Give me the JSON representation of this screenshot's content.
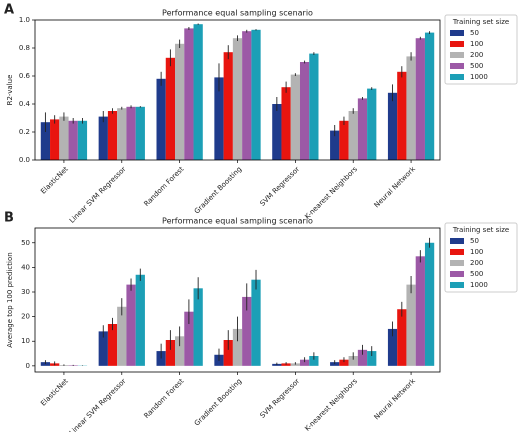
{
  "chart_data": [
    {
      "type": "bar",
      "panel": "A",
      "title": "Performance equal sampling scenario",
      "y_label": "R2-value",
      "categories": [
        "ElasticNet",
        "Linear SVM Regressor",
        "Random Forest",
        "Gradient Boosting",
        "SVM Regressor",
        "K-nearest Neighbors",
        "Neural Network"
      ],
      "legend_title": "Training set size",
      "legend": "outside right",
      "series": [
        {
          "name": "50",
          "color": "#1f3b8c",
          "values": [
            0.27,
            0.31,
            0.58,
            0.59,
            0.4,
            0.21,
            0.48
          ],
          "errors": [
            0.07,
            0.04,
            0.05,
            0.1,
            0.05,
            0.04,
            0.06
          ]
        },
        {
          "name": "100",
          "color": "#e8150f",
          "values": [
            0.29,
            0.35,
            0.73,
            0.77,
            0.52,
            0.28,
            0.63
          ],
          "errors": [
            0.03,
            0.02,
            0.06,
            0.05,
            0.04,
            0.03,
            0.04
          ]
        },
        {
          "name": "200",
          "color": "#b3b3b3",
          "values": [
            0.31,
            0.37,
            0.83,
            0.87,
            0.61,
            0.35,
            0.74
          ],
          "errors": [
            0.03,
            0.01,
            0.03,
            0.02,
            0.01,
            0.02,
            0.03
          ]
        },
        {
          "name": "500",
          "color": "#9c59a6",
          "values": [
            0.28,
            0.38,
            0.94,
            0.92,
            0.7,
            0.44,
            0.87
          ],
          "errors": [
            0.02,
            0.01,
            0.01,
            0.01,
            0.01,
            0.01,
            0.01
          ]
        },
        {
          "name": "1000",
          "color": "#1c9fb6",
          "values": [
            0.28,
            0.38,
            0.97,
            0.93,
            0.76,
            0.51,
            0.91
          ],
          "errors": [
            0.02,
            0.005,
            0.005,
            0.005,
            0.01,
            0.01,
            0.01
          ]
        }
      ],
      "ylim": [
        0,
        1.0
      ],
      "yticks": [
        {
          "value": 0,
          "label": "0.0"
        },
        0.2,
        0.4,
        0.6,
        0.8,
        {
          "value": 1,
          "label": "1.0"
        }
      ]
    },
    {
      "type": "bar",
      "panel": "B",
      "title": "Performance equal sampling scenario",
      "y_label": "Average top 100 prediction",
      "categories": [
        "ElasticNet",
        "Linear SVM Regressor",
        "Random Forest",
        "Gradient Boosting",
        "SVM Regressor",
        "K-nearest Neighbors",
        "Neural Network"
      ],
      "legend_title": "Training set size",
      "legend": "outside right",
      "series": [
        {
          "name": "50",
          "color": "#1f3b8c",
          "values": [
            1.5,
            14,
            6,
            4.5,
            0.8,
            1.5,
            15
          ],
          "errors": [
            0.8,
            2.5,
            3,
            2.5,
            0.5,
            0.8,
            3
          ]
        },
        {
          "name": "100",
          "color": "#e8150f",
          "values": [
            1,
            17,
            10.5,
            10.5,
            1,
            2.5,
            23
          ],
          "errors": [
            0.8,
            2.5,
            4,
            4,
            0.5,
            1,
            3
          ]
        },
        {
          "name": "200",
          "color": "#b3b3b3",
          "values": [
            0.3,
            24,
            12,
            15,
            1,
            4,
            33
          ],
          "errors": [
            0.3,
            3.5,
            4,
            5,
            0.5,
            1.5,
            3.5
          ]
        },
        {
          "name": "500",
          "color": "#9c59a6",
          "values": [
            0.2,
            33,
            22,
            28,
            2.5,
            6.5,
            44.5
          ],
          "errors": [
            0.2,
            2.5,
            5,
            5.5,
            1,
            2,
            2.5
          ]
        },
        {
          "name": "1000",
          "color": "#1c9fb6",
          "values": [
            0.1,
            37,
            31.5,
            35,
            4,
            6,
            50
          ],
          "errors": [
            0.1,
            2.5,
            4.5,
            4,
            1.5,
            2,
            2
          ]
        }
      ],
      "ylim": [
        -2.5,
        56
      ],
      "yticks": [
        0,
        10,
        20,
        30,
        40,
        50
      ]
    }
  ]
}
